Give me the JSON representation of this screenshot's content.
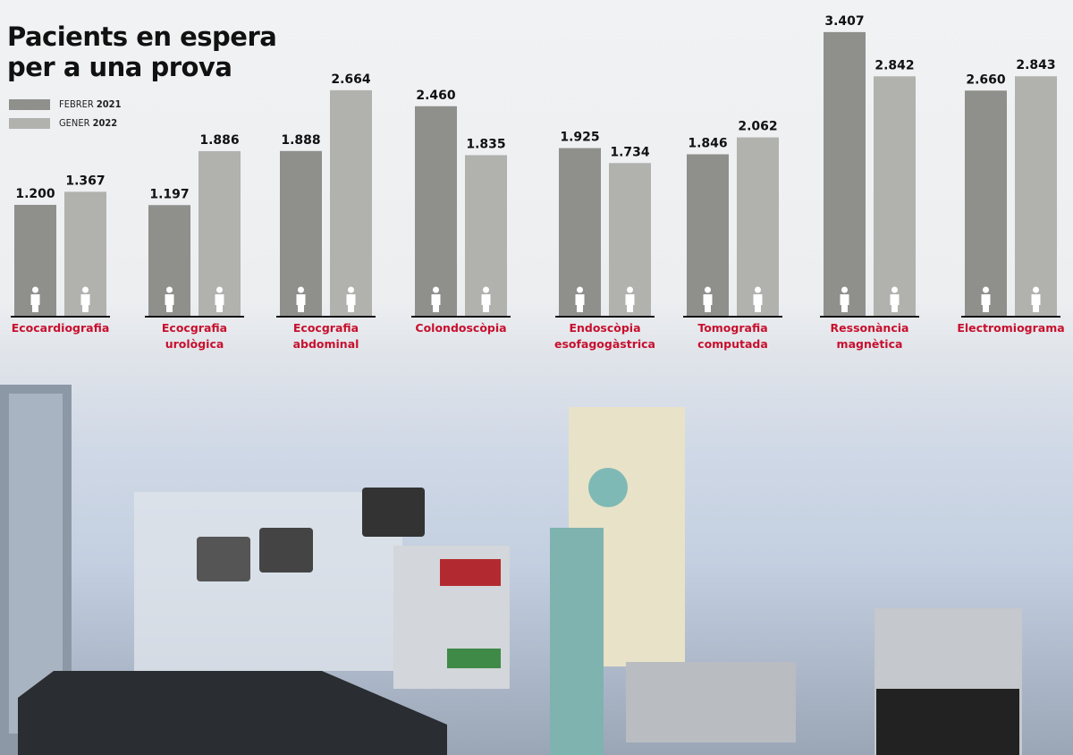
{
  "chart_data": {
    "type": "bar",
    "title": "Pacients en espera per a una prova",
    "title_lines": [
      "Pacients en espera",
      "per a una prova"
    ],
    "categories": [
      [
        "Ecocardiografia"
      ],
      [
        "Ecocgrafia",
        "urològica"
      ],
      [
        "Ecocgrafia",
        "abdominal"
      ],
      [
        "Colondoscòpia"
      ],
      [
        "Endoscòpia",
        "esofagogàstrica"
      ],
      [
        "Tomografia",
        "computada"
      ],
      [
        "Ressonància",
        "magnètica"
      ],
      [
        "Electromiograma"
      ]
    ],
    "series": [
      {
        "name": "FEBRER 2021",
        "name_parts": [
          "FEBRER",
          "2021"
        ],
        "color": "#8f8f8c",
        "values": [
          1200,
          1197,
          1888,
          2460,
          1925,
          1846,
          3407,
          2660
        ],
        "labels": [
          "1.200",
          "1.197",
          "1.888",
          "2.460",
          "1.925",
          "1.846",
          "3.407",
          "2.660"
        ]
      },
      {
        "name": "GENER 2022",
        "name_parts": [
          "GENER",
          "2022"
        ],
        "color": "#b1b1ae",
        "values": [
          1367,
          1886,
          2664,
          1835,
          1734,
          2062,
          2842,
          2843
        ],
        "labels": [
          "1.367",
          "1.886",
          "2.664",
          "1.835",
          "1.734",
          "2.062",
          "2.842",
          "2.843"
        ]
      }
    ],
    "xlabel": "",
    "ylabel": "",
    "grid": false,
    "legend": "top-left",
    "category_label_color": "#c8102e",
    "bar_icon": "person-icon"
  }
}
